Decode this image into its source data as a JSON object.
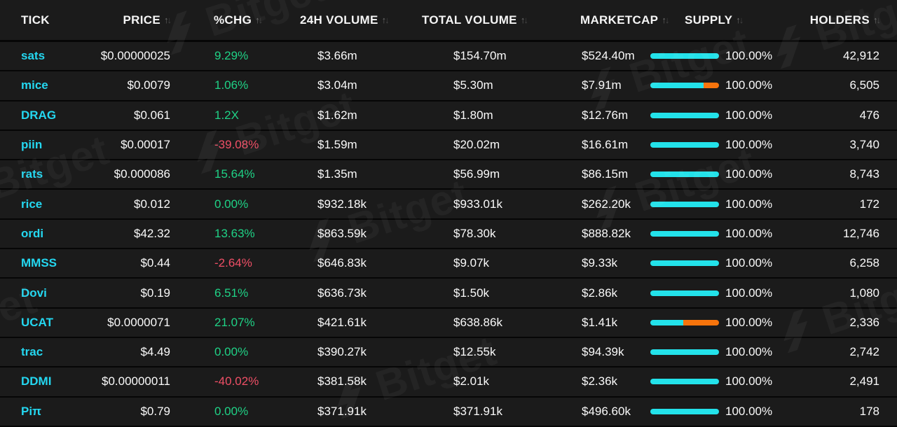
{
  "watermark": {
    "label": "Bitget"
  },
  "colors": {
    "accent_cyan": "#24d7f0",
    "positive_green": "#1fd286",
    "negative_red": "#ef4f66",
    "bar_cyan": "#23e2ea",
    "bar_orange": "#f7740c",
    "row_background": "#1b1b1b",
    "separator": "#060606"
  },
  "table": {
    "columns": [
      {
        "label": "TICK",
        "sortable": false
      },
      {
        "label": "PRICE",
        "sortable": true
      },
      {
        "label": "%CHG",
        "sortable": true
      },
      {
        "label": "24H VOLUME",
        "sortable": true
      },
      {
        "label": "TOTAL VOLUME",
        "sortable": true
      },
      {
        "label": "MARKETCAP",
        "sortable": true
      },
      {
        "label": "SUPPLY",
        "sortable": true
      },
      {
        "label": "HOLDERS",
        "sortable": true
      }
    ],
    "sort_icon": {
      "up": "↑",
      "down": "↓"
    },
    "rows": [
      {
        "tick": "sats",
        "price": "$0.00000025",
        "chg": "9.29%",
        "dir": "up",
        "vol24": "$3.66m",
        "total_vol": "$154.70m",
        "marketcap": "$524.40m",
        "supply_cyan_pct": 100,
        "supply_label": "100.00%",
        "holders": "42,912"
      },
      {
        "tick": "mice",
        "price": "$0.0079",
        "chg": "1.06%",
        "dir": "up",
        "vol24": "$3.04m",
        "total_vol": "$5.30m",
        "marketcap": "$7.91m",
        "supply_cyan_pct": 78,
        "supply_label": "100.00%",
        "holders": "6,505"
      },
      {
        "tick": "DRAG",
        "price": "$0.061",
        "chg": "1.2X",
        "dir": "up",
        "vol24": "$1.62m",
        "total_vol": "$1.80m",
        "marketcap": "$12.76m",
        "supply_cyan_pct": 100,
        "supply_label": "100.00%",
        "holders": "476"
      },
      {
        "tick": "piin",
        "price": "$0.00017",
        "chg": "-39.08%",
        "dir": "down",
        "vol24": "$1.59m",
        "total_vol": "$20.02m",
        "marketcap": "$16.61m",
        "supply_cyan_pct": 100,
        "supply_label": "100.00%",
        "holders": "3,740"
      },
      {
        "tick": "rats",
        "price": "$0.000086",
        "chg": "15.64%",
        "dir": "up",
        "vol24": "$1.35m",
        "total_vol": "$56.99m",
        "marketcap": "$86.15m",
        "supply_cyan_pct": 100,
        "supply_label": "100.00%",
        "holders": "8,743"
      },
      {
        "tick": "rice",
        "price": "$0.012",
        "chg": "0.00%",
        "dir": "up",
        "vol24": "$932.18k",
        "total_vol": "$933.01k",
        "marketcap": "$262.20k",
        "supply_cyan_pct": 100,
        "supply_label": "100.00%",
        "holders": "172"
      },
      {
        "tick": "ordi",
        "price": "$42.32",
        "chg": "13.63%",
        "dir": "up",
        "vol24": "$863.59k",
        "total_vol": "$78.30k",
        "marketcap": "$888.82k",
        "supply_cyan_pct": 100,
        "supply_label": "100.00%",
        "holders": "12,746"
      },
      {
        "tick": "MMSS",
        "price": "$0.44",
        "chg": "-2.64%",
        "dir": "down",
        "vol24": "$646.83k",
        "total_vol": "$9.07k",
        "marketcap": "$9.33k",
        "supply_cyan_pct": 100,
        "supply_label": "100.00%",
        "holders": "6,258"
      },
      {
        "tick": "Dovi",
        "price": "$0.19",
        "chg": "6.51%",
        "dir": "up",
        "vol24": "$636.73k",
        "total_vol": "$1.50k",
        "marketcap": "$2.86k",
        "supply_cyan_pct": 100,
        "supply_label": "100.00%",
        "holders": "1,080"
      },
      {
        "tick": "UCAT",
        "price": "$0.0000071",
        "chg": "21.07%",
        "dir": "up",
        "vol24": "$421.61k",
        "total_vol": "$638.86k",
        "marketcap": "$1.41k",
        "supply_cyan_pct": 48,
        "supply_label": "100.00%",
        "holders": "2,336"
      },
      {
        "tick": "trac",
        "price": "$4.49",
        "chg": "0.00%",
        "dir": "up",
        "vol24": "$390.27k",
        "total_vol": "$12.55k",
        "marketcap": "$94.39k",
        "supply_cyan_pct": 100,
        "supply_label": "100.00%",
        "holders": "2,742"
      },
      {
        "tick": "DDMI",
        "price": "$0.00000011",
        "chg": "-40.02%",
        "dir": "down",
        "vol24": "$381.58k",
        "total_vol": "$2.01k",
        "marketcap": "$2.36k",
        "supply_cyan_pct": 100,
        "supply_label": "100.00%",
        "holders": "2,491"
      },
      {
        "tick": "Piπ",
        "price": "$0.79",
        "chg": "0.00%",
        "dir": "up",
        "vol24": "$371.91k",
        "total_vol": "$371.91k",
        "marketcap": "$496.60k",
        "supply_cyan_pct": 100,
        "supply_label": "100.00%",
        "holders": "178"
      }
    ]
  }
}
